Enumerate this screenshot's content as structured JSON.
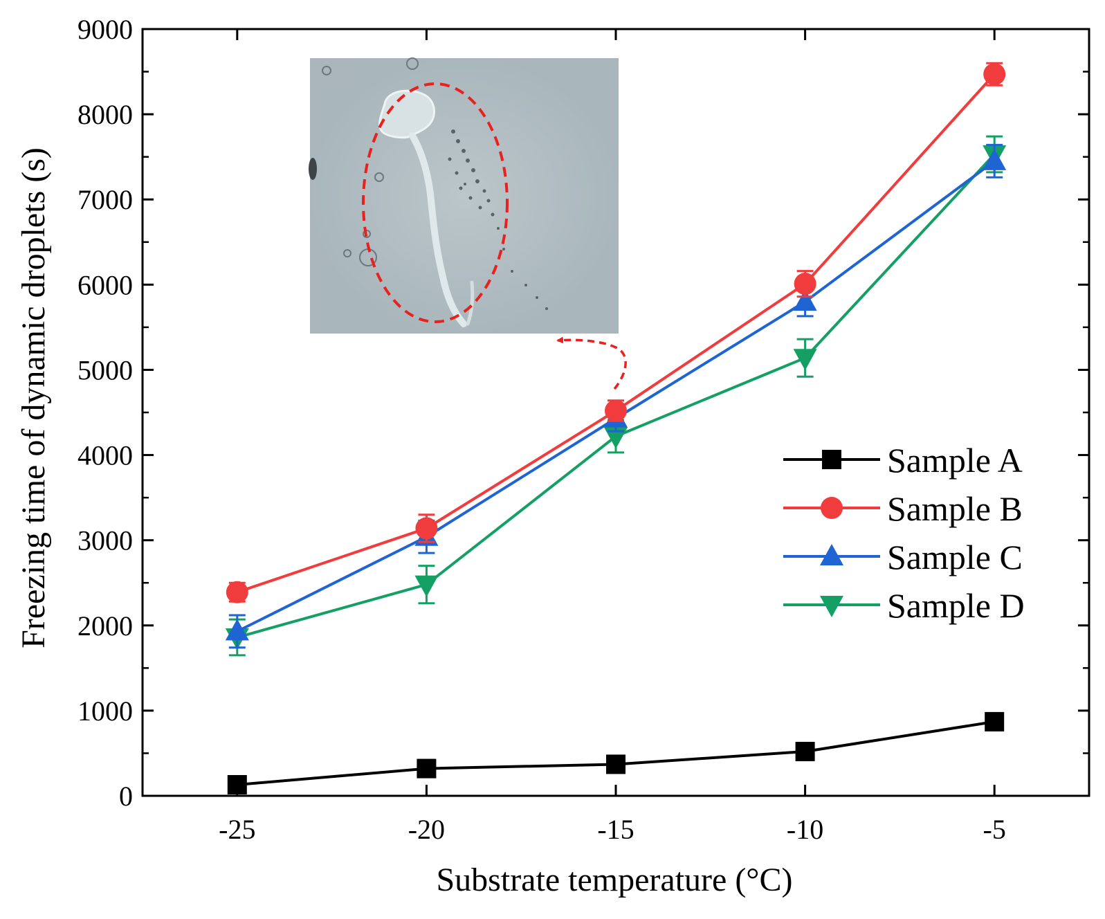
{
  "chart_data": {
    "type": "line",
    "title": "",
    "xlabel": "Substrate temperature (°C)",
    "ylabel": "Freezing time of dynamic droplets (s)",
    "x": [
      -25,
      -20,
      -15,
      -10,
      -5
    ],
    "xticks": [
      "-25",
      "-20",
      "-15",
      "-10",
      "-5"
    ],
    "xlim": [
      -27.5,
      -2.5
    ],
    "ylim": [
      0,
      9000
    ],
    "yticks": [
      "0",
      "1000",
      "2000",
      "3000",
      "4000",
      "5000",
      "6000",
      "7000",
      "8000",
      "9000"
    ],
    "grid": false,
    "legend_position": "right-middle",
    "series": [
      {
        "name": "Sample A",
        "color": "#000000",
        "marker": "square",
        "values": [
          130,
          320,
          370,
          520,
          870
        ],
        "errors": [
          90,
          100,
          100,
          100,
          100
        ]
      },
      {
        "name": "Sample B",
        "color": "#f03c3c",
        "marker": "circle",
        "values": [
          2390,
          3140,
          4520,
          6010,
          8470
        ],
        "errors": [
          110,
          160,
          120,
          150,
          130
        ]
      },
      {
        "name": "Sample C",
        "color": "#1e64d2",
        "marker": "triangle-up",
        "values": [
          1930,
          3040,
          4430,
          5800,
          7450
        ],
        "errors": [
          190,
          190,
          150,
          170,
          190
        ]
      },
      {
        "name": "Sample D",
        "color": "#14a064",
        "marker": "triangle-down",
        "values": [
          1860,
          2480,
          4220,
          5140,
          7530
        ],
        "errors": [
          210,
          220,
          190,
          220,
          210
        ]
      }
    ],
    "annotations": [
      {
        "type": "inset-photo",
        "description_name": "frozen-droplet-trail-photo",
        "points_to_x": -15
      }
    ]
  }
}
